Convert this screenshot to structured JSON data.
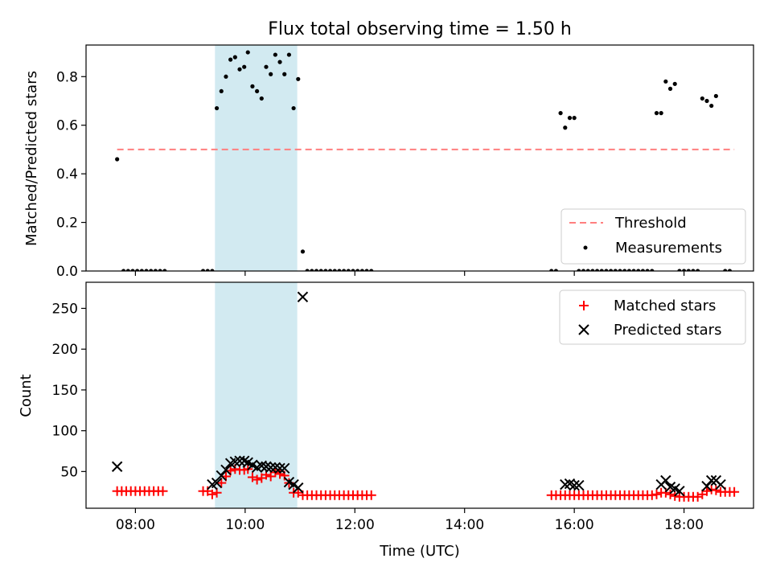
{
  "title": "Flux total observing time = 1.50 h",
  "chart_data": [
    {
      "type": "scatter",
      "ylabel": "Matched/Predicted stars",
      "xlabel": "",
      "xlim": [
        "07:06",
        "19:16"
      ],
      "ylim": [
        0,
        0.93
      ],
      "yticks": [
        0.0,
        0.2,
        0.4,
        0.6,
        0.8
      ],
      "ytick_labels": [
        "0.0",
        "0.2",
        "0.4",
        "0.6",
        "0.8"
      ],
      "xticks": [
        "08:00",
        "10:00",
        "12:00",
        "14:00",
        "16:00",
        "18:00"
      ],
      "shaded_region": {
        "x": [
          "09:27",
          "10:57"
        ],
        "color": "#add8e6"
      },
      "legend_position": "lower-right",
      "threshold": {
        "name": "Threshold",
        "y": 0.5,
        "x": [
          "07:40",
          "18:55"
        ],
        "color": "#ff7f7f",
        "style": "dashed"
      },
      "series": [
        {
          "name": "Measurements",
          "marker": "dot",
          "color": "#000000",
          "points": [
            [
              "07:40",
              0.46
            ],
            [
              "07:47",
              0.0
            ],
            [
              "07:52",
              0.0
            ],
            [
              "07:57",
              0.0
            ],
            [
              "08:02",
              0.0
            ],
            [
              "08:07",
              0.0
            ],
            [
              "08:12",
              0.0
            ],
            [
              "08:17",
              0.0
            ],
            [
              "08:22",
              0.0
            ],
            [
              "08:27",
              0.0
            ],
            [
              "08:32",
              0.0
            ],
            [
              "09:14",
              0.0
            ],
            [
              "09:19",
              0.0
            ],
            [
              "09:24",
              0.0
            ],
            [
              "09:29",
              0.67
            ],
            [
              "09:34",
              0.74
            ],
            [
              "09:39",
              0.8
            ],
            [
              "09:44",
              0.87
            ],
            [
              "09:49",
              0.88
            ],
            [
              "09:54",
              0.83
            ],
            [
              "09:59",
              0.84
            ],
            [
              "10:03",
              0.9
            ],
            [
              "10:08",
              0.76
            ],
            [
              "10:13",
              0.74
            ],
            [
              "10:18",
              0.71
            ],
            [
              "10:23",
              0.84
            ],
            [
              "10:28",
              0.81
            ],
            [
              "10:33",
              0.89
            ],
            [
              "10:38",
              0.86
            ],
            [
              "10:43",
              0.81
            ],
            [
              "10:48",
              0.89
            ],
            [
              "10:53",
              0.67
            ],
            [
              "10:58",
              0.79
            ],
            [
              "11:03",
              0.08
            ],
            [
              "11:08",
              0.0
            ],
            [
              "11:13",
              0.0
            ],
            [
              "11:18",
              0.0
            ],
            [
              "11:23",
              0.0
            ],
            [
              "11:28",
              0.0
            ],
            [
              "11:33",
              0.0
            ],
            [
              "11:38",
              0.0
            ],
            [
              "11:43",
              0.0
            ],
            [
              "11:48",
              0.0
            ],
            [
              "11:53",
              0.0
            ],
            [
              "11:58",
              0.0
            ],
            [
              "12:03",
              0.0
            ],
            [
              "12:08",
              0.0
            ],
            [
              "12:13",
              0.0
            ],
            [
              "12:18",
              0.0
            ],
            [
              "15:35",
              0.0
            ],
            [
              "15:40",
              0.0
            ],
            [
              "15:45",
              0.65
            ],
            [
              "15:50",
              0.59
            ],
            [
              "15:55",
              0.63
            ],
            [
              "16:00",
              0.63
            ],
            [
              "16:05",
              0.0
            ],
            [
              "16:10",
              0.0
            ],
            [
              "16:15",
              0.0
            ],
            [
              "16:20",
              0.0
            ],
            [
              "16:25",
              0.0
            ],
            [
              "16:30",
              0.0
            ],
            [
              "16:35",
              0.0
            ],
            [
              "16:40",
              0.0
            ],
            [
              "16:45",
              0.0
            ],
            [
              "16:50",
              0.0
            ],
            [
              "16:55",
              0.0
            ],
            [
              "17:00",
              0.0
            ],
            [
              "17:05",
              0.0
            ],
            [
              "17:10",
              0.0
            ],
            [
              "17:15",
              0.0
            ],
            [
              "17:20",
              0.0
            ],
            [
              "17:25",
              0.0
            ],
            [
              "17:30",
              0.65
            ],
            [
              "17:35",
              0.65
            ],
            [
              "17:40",
              0.78
            ],
            [
              "17:45",
              0.75
            ],
            [
              "17:50",
              0.77
            ],
            [
              "17:55",
              0.0
            ],
            [
              "18:00",
              0.0
            ],
            [
              "18:05",
              0.0
            ],
            [
              "18:10",
              0.0
            ],
            [
              "18:15",
              0.0
            ],
            [
              "18:20",
              0.71
            ],
            [
              "18:25",
              0.7
            ],
            [
              "18:30",
              0.68
            ],
            [
              "18:35",
              0.72
            ],
            [
              "18:45",
              0.0
            ],
            [
              "18:50",
              0.0
            ]
          ]
        }
      ]
    },
    {
      "type": "scatter",
      "ylabel": "Count",
      "xlabel": "Time (UTC)",
      "xlim": [
        "07:06",
        "19:16"
      ],
      "ylim": [
        5,
        282
      ],
      "yticks": [
        50,
        100,
        150,
        200,
        250
      ],
      "ytick_labels": [
        "50",
        "100",
        "150",
        "200",
        "250"
      ],
      "xticks": [
        "08:00",
        "10:00",
        "12:00",
        "14:00",
        "16:00",
        "18:00"
      ],
      "xtick_labels": [
        "08:00",
        "10:00",
        "12:00",
        "14:00",
        "16:00",
        "18:00"
      ],
      "shaded_region": {
        "x": [
          "09:27",
          "10:57"
        ],
        "color": "#add8e6"
      },
      "legend_position": "upper-right",
      "series": [
        {
          "name": "Matched stars",
          "marker": "plus",
          "color": "#ff0000",
          "points": [
            [
              "07:40",
              26
            ],
            [
              "07:45",
              26
            ],
            [
              "07:50",
              26
            ],
            [
              "07:55",
              26
            ],
            [
              "08:00",
              26
            ],
            [
              "08:05",
              26
            ],
            [
              "08:10",
              26
            ],
            [
              "08:15",
              26
            ],
            [
              "08:20",
              26
            ],
            [
              "08:25",
              26
            ],
            [
              "08:30",
              26
            ],
            [
              "09:14",
              26
            ],
            [
              "09:19",
              26
            ],
            [
              "09:24",
              22
            ],
            [
              "09:29",
              24
            ],
            [
              "09:34",
              36
            ],
            [
              "09:39",
              44
            ],
            [
              "09:44",
              51
            ],
            [
              "09:49",
              53
            ],
            [
              "09:54",
              52
            ],
            [
              "09:59",
              52
            ],
            [
              "10:03",
              53
            ],
            [
              "10:08",
              43
            ],
            [
              "10:13",
              40
            ],
            [
              "10:18",
              42
            ],
            [
              "10:23",
              46
            ],
            [
              "10:28",
              44
            ],
            [
              "10:33",
              49
            ],
            [
              "10:38",
              47
            ],
            [
              "10:43",
              45
            ],
            [
              "10:48",
              36
            ],
            [
              "10:53",
              24
            ],
            [
              "10:58",
              24
            ],
            [
              "11:03",
              21
            ],
            [
              "11:08",
              21
            ],
            [
              "11:13",
              21
            ],
            [
              "11:18",
              21
            ],
            [
              "11:23",
              21
            ],
            [
              "11:28",
              21
            ],
            [
              "11:33",
              21
            ],
            [
              "11:38",
              21
            ],
            [
              "11:43",
              21
            ],
            [
              "11:48",
              21
            ],
            [
              "11:53",
              21
            ],
            [
              "11:58",
              21
            ],
            [
              "12:03",
              21
            ],
            [
              "12:08",
              21
            ],
            [
              "12:13",
              21
            ],
            [
              "12:18",
              21
            ],
            [
              "15:35",
              21
            ],
            [
              "15:40",
              21
            ],
            [
              "15:45",
              21
            ],
            [
              "15:50",
              21
            ],
            [
              "15:55",
              21
            ],
            [
              "16:00",
              21
            ],
            [
              "16:05",
              21
            ],
            [
              "16:10",
              21
            ],
            [
              "16:15",
              21
            ],
            [
              "16:20",
              21
            ],
            [
              "16:25",
              21
            ],
            [
              "16:30",
              21
            ],
            [
              "16:35",
              21
            ],
            [
              "16:40",
              21
            ],
            [
              "16:45",
              21
            ],
            [
              "16:50",
              21
            ],
            [
              "16:55",
              21
            ],
            [
              "17:00",
              21
            ],
            [
              "17:05",
              21
            ],
            [
              "17:10",
              21
            ],
            [
              "17:15",
              21
            ],
            [
              "17:20",
              21
            ],
            [
              "17:25",
              21
            ],
            [
              "17:30",
              22
            ],
            [
              "17:35",
              24
            ],
            [
              "17:40",
              24
            ],
            [
              "17:45",
              22
            ],
            [
              "17:50",
              20
            ],
            [
              "17:55",
              19
            ],
            [
              "18:00",
              19
            ],
            [
              "18:05",
              19
            ],
            [
              "18:10",
              19
            ],
            [
              "18:15",
              19
            ],
            [
              "18:20",
              22
            ],
            [
              "18:25",
              26
            ],
            [
              "18:30",
              28
            ],
            [
              "18:35",
              27
            ],
            [
              "18:40",
              25
            ],
            [
              "18:45",
              25
            ],
            [
              "18:50",
              25
            ],
            [
              "18:55",
              25
            ]
          ]
        },
        {
          "name": "Predicted stars",
          "marker": "x",
          "color": "#000000",
          "points": [
            [
              "07:40",
              56
            ],
            [
              "09:24",
              34
            ],
            [
              "09:29",
              36
            ],
            [
              "09:34",
              45
            ],
            [
              "09:39",
              52
            ],
            [
              "09:44",
              60
            ],
            [
              "09:49",
              62
            ],
            [
              "09:54",
              63
            ],
            [
              "09:59",
              63
            ],
            [
              "10:03",
              61
            ],
            [
              "10:08",
              58
            ],
            [
              "10:13",
              55
            ],
            [
              "10:18",
              57
            ],
            [
              "10:23",
              56
            ],
            [
              "10:28",
              55
            ],
            [
              "10:33",
              55
            ],
            [
              "10:38",
              54
            ],
            [
              "10:43",
              54
            ],
            [
              "10:48",
              37
            ],
            [
              "10:53",
              34
            ],
            [
              "10:58",
              30
            ],
            [
              "11:03",
              264
            ],
            [
              "15:50",
              34
            ],
            [
              "15:55",
              35
            ],
            [
              "16:00",
              33
            ],
            [
              "16:05",
              33
            ],
            [
              "17:35",
              34
            ],
            [
              "17:40",
              39
            ],
            [
              "17:45",
              31
            ],
            [
              "17:50",
              29
            ],
            [
              "17:55",
              26
            ],
            [
              "18:25",
              32
            ],
            [
              "18:30",
              39
            ],
            [
              "18:35",
              39
            ],
            [
              "18:40",
              34
            ]
          ]
        }
      ]
    }
  ]
}
